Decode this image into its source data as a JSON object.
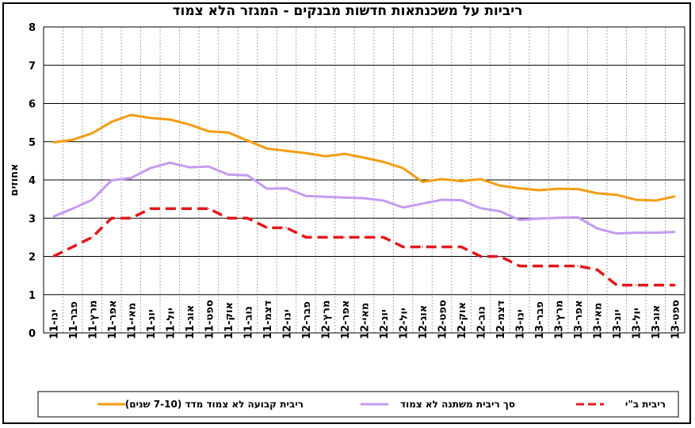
{
  "chart_data": {
    "type": "line",
    "title": "ריביות על משכנתאות חדשות מבנקים - המגזר הלא צמוד",
    "ylabel": "אחוזים",
    "xlabel": "",
    "ylim": [
      0,
      8
    ],
    "yticks": [
      0,
      1,
      2,
      3,
      4,
      5,
      6,
      7,
      8
    ],
    "grid": true,
    "legend_position": "bottom",
    "x": [
      "ינו-11",
      "פבר-11",
      "מרץ-11",
      "אפר-11",
      "מאי-11",
      "יונ-11",
      "יול-11",
      "אוג-11",
      "ספט-11",
      "אוק-11",
      "נוב-11",
      "דצמ-11",
      "ינו-12",
      "פבר-12",
      "מרץ-12",
      "אפר-12",
      "מאי-12",
      "יונ-12",
      "יול-12",
      "אוג-12",
      "ספט-12",
      "אוק-12",
      "נוב-12",
      "דצמ-12",
      "ינו-13",
      "פבר-13",
      "מרץ-13",
      "אפר-13",
      "מאי-13",
      "יונ-13",
      "יול-13",
      "אוג-13",
      "ספט-13"
    ],
    "series": [
      {
        "name": "ריבית קבועה לא צמוד מדד (7-10 שנים)",
        "color": "#f39c12",
        "style": "solid",
        "values": [
          4.98,
          5.05,
          5.22,
          5.52,
          5.7,
          5.62,
          5.58,
          5.45,
          5.27,
          5.24,
          5.03,
          4.82,
          4.76,
          4.7,
          4.62,
          4.68,
          4.58,
          4.47,
          4.31,
          3.95,
          4.02,
          3.97,
          4.02,
          3.85,
          3.78,
          3.73,
          3.77,
          3.76,
          3.65,
          3.61,
          3.48,
          3.46,
          3.57
        ]
      },
      {
        "name": "סך ריבית משתנה לא צמוד",
        "color": "#c39bf2",
        "style": "solid",
        "values": [
          3.04,
          3.25,
          3.48,
          3.99,
          4.05,
          4.31,
          4.45,
          4.33,
          4.35,
          4.14,
          4.12,
          3.77,
          3.78,
          3.58,
          3.56,
          3.54,
          3.52,
          3.46,
          3.28,
          3.38,
          3.48,
          3.47,
          3.26,
          3.18,
          2.95,
          2.99,
          3.01,
          3.02,
          2.73,
          2.6,
          2.62,
          2.62,
          2.64
        ]
      },
      {
        "name": "ריבית ב\"י",
        "color": "#e3181b",
        "style": "dashed",
        "values": [
          2.0,
          2.25,
          2.5,
          3.0,
          3.0,
          3.25,
          3.25,
          3.25,
          3.25,
          3.0,
          3.0,
          2.75,
          2.75,
          2.5,
          2.5,
          2.5,
          2.5,
          2.5,
          2.25,
          2.25,
          2.25,
          2.25,
          2.0,
          2.0,
          1.75,
          1.75,
          1.75,
          1.75,
          1.65,
          1.25,
          1.25,
          1.25,
          1.25
        ]
      }
    ]
  }
}
